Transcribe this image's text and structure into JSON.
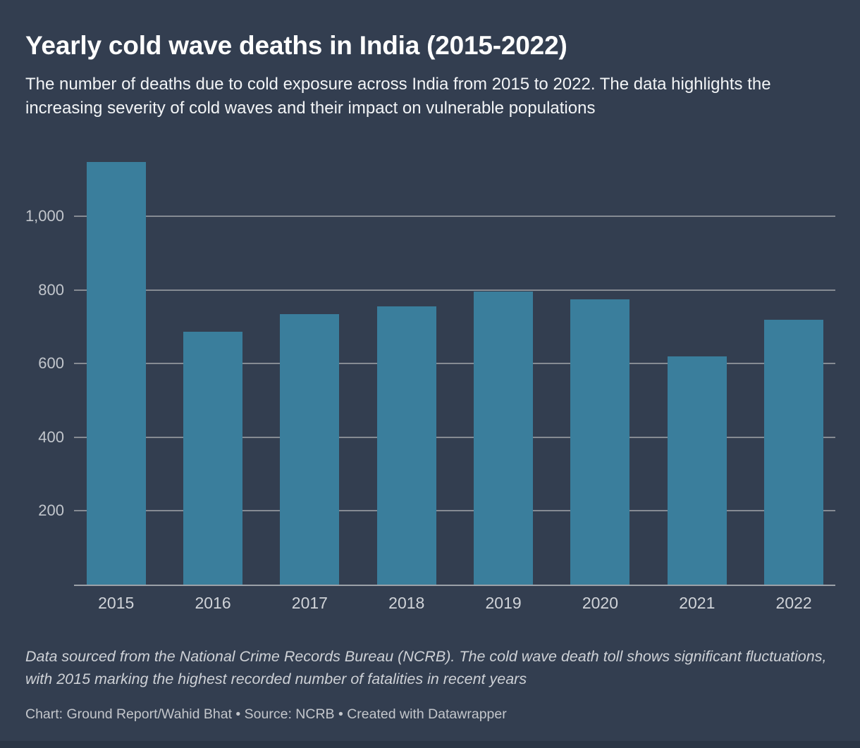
{
  "header": {
    "title": "Yearly cold wave deaths in India (2015-2022)",
    "subtitle": "The number of deaths due to cold exposure across India from 2015 to 2022. The data highlights the increasing severity of cold waves and their impact on vulnerable populations"
  },
  "chart_data": {
    "type": "bar",
    "categories": [
      "2015",
      "2016",
      "2017",
      "2018",
      "2019",
      "2020",
      "2021",
      "2022"
    ],
    "values": [
      1147,
      686,
      735,
      755,
      795,
      775,
      620,
      720
    ],
    "title": "Yearly cold wave deaths in India (2015-2022)",
    "xlabel": "",
    "ylabel": "",
    "ylim": [
      0,
      1150
    ],
    "yticks": [
      200,
      400,
      600,
      800,
      1000
    ],
    "ytick_labels": [
      "200",
      "400",
      "600",
      "800",
      "1,000"
    ],
    "grid": true,
    "legend": false,
    "bar_color": "#3A7E9C"
  },
  "footer": {
    "note": "Data sourced from the National Crime Records Bureau (NCRB). The cold wave death toll shows significant fluctuations, with 2015 marking the highest recorded number of fatalities in recent years",
    "byline": "Chart: Ground Report/Wahid Bhat • Source: NCRB • Created with Datawrapper"
  },
  "colors": {
    "background": "#333E50",
    "bar": "#3A7E9C",
    "gridline": "#868B93",
    "axis_line": "#9CA1A8",
    "axis_text": "#C9CCD2",
    "title_text": "#FFFFFF",
    "bottom_strip": "#2B3646"
  }
}
